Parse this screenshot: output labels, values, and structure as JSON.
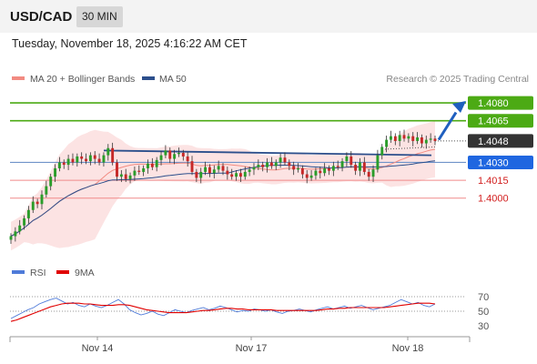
{
  "header": {
    "symbol": "USD/CAD",
    "timeframe": "30 MIN",
    "datetime": "Tuesday, November 18, 2025 4:16:22 AM CET"
  },
  "legend": {
    "ma20_label": "MA 20 + Bollinger Bands",
    "ma50_label": "MA 50",
    "ma20_color": "#f28b82",
    "ma50_color": "#2c4f8c",
    "attribution": "Research © 2025 Trading Central"
  },
  "rsi_legend": {
    "rsi_label": "RSI",
    "ma_label": "9MA",
    "rsi_color": "#4f7bd9",
    "ma_color": "#e00000"
  },
  "chart_data": [
    {
      "type": "candlestick",
      "title": "",
      "x_ticks": [
        "Nov 14",
        "Nov 17",
        "Nov 18"
      ],
      "ylim": [
        1.396,
        1.409
      ],
      "levels": [
        {
          "value": 1.408,
          "label": "1.4080",
          "kind": "resistance",
          "color": "#4caa14"
        },
        {
          "value": 1.4065,
          "label": "1.4065",
          "kind": "resistance",
          "color": "#4caa14"
        },
        {
          "value": 1.4048,
          "label": "1.4048",
          "kind": "last-price",
          "color": "#333333"
        },
        {
          "value": 1.403,
          "label": "1.4030",
          "kind": "pivot",
          "color": "#1f66e0"
        },
        {
          "value": 1.4015,
          "label": "1.4015",
          "kind": "support",
          "color": "#d21e1e"
        },
        {
          "value": 1.4,
          "label": "1.4000",
          "kind": "support",
          "color": "#d21e1e"
        }
      ],
      "closes": [
        1.3968,
        1.3972,
        1.3977,
        1.3983,
        1.399,
        1.3997,
        1.3995,
        1.4003,
        1.401,
        1.4018,
        1.4025,
        1.403,
        1.4028,
        1.4033,
        1.403,
        1.4035,
        1.4033,
        1.4031,
        1.4036,
        1.4033,
        1.403,
        1.4036,
        1.4042,
        1.403,
        1.4018,
        1.402,
        1.4016,
        1.4019,
        1.4023,
        1.4022,
        1.4025,
        1.4029,
        1.4026,
        1.4032,
        1.4036,
        1.404,
        1.4033,
        1.4037,
        1.4038,
        1.4035,
        1.4031,
        1.4022,
        1.4017,
        1.4022,
        1.4026,
        1.4021,
        1.4024,
        1.4027,
        1.4023,
        1.402,
        1.4018,
        1.4021,
        1.4018,
        1.4022,
        1.4024,
        1.4026,
        1.4028,
        1.4026,
        1.403,
        1.4027,
        1.403,
        1.4034,
        1.403,
        1.4027,
        1.4024,
        1.4025,
        1.402,
        1.4017,
        1.4019,
        1.4023,
        1.4021,
        1.4025,
        1.4023,
        1.4027,
        1.4026,
        1.4031,
        1.4035,
        1.4028,
        1.4023,
        1.403,
        1.4022,
        1.4018,
        1.4024,
        1.4036,
        1.4043,
        1.4049,
        1.4052,
        1.4048,
        1.4053,
        1.405,
        1.4052,
        1.4048,
        1.4051,
        1.4046,
        1.4049,
        1.405,
        1.4048
      ]
    },
    {
      "type": "line",
      "title": "",
      "ylim": [
        20,
        85
      ],
      "y_ticks": [
        70,
        50,
        30
      ],
      "series": [
        {
          "name": "RSI",
          "values": [
            40,
            44,
            48,
            52,
            55,
            60,
            63,
            66,
            68,
            64,
            60,
            62,
            58,
            56,
            60,
            57,
            55,
            58,
            62,
            66,
            60,
            52,
            48,
            45,
            47,
            50,
            46,
            44,
            48,
            52,
            50,
            48,
            51,
            53,
            55,
            52,
            54,
            57,
            55,
            52,
            49,
            51,
            50,
            53,
            52,
            50,
            52,
            49,
            47,
            50,
            51,
            53,
            51,
            49,
            52,
            54,
            56,
            53,
            55,
            57,
            54,
            56,
            58,
            55,
            52,
            54,
            56,
            58,
            62,
            66,
            63,
            60,
            62,
            58,
            56,
            60
          ]
        },
        {
          "name": "9MA",
          "values": [
            36,
            38,
            41,
            44,
            47,
            50,
            53,
            56,
            58,
            60,
            61,
            61,
            61,
            60,
            60,
            59,
            58,
            58,
            58,
            59,
            59,
            58,
            56,
            54,
            52,
            51,
            50,
            49,
            48,
            48,
            48,
            48,
            49,
            50,
            51,
            51,
            52,
            53,
            54,
            54,
            53,
            53,
            52,
            52,
            52,
            52,
            52,
            51,
            51,
            51,
            51,
            51,
            51,
            51,
            51,
            52,
            53,
            53,
            54,
            54,
            55,
            55,
            55,
            55,
            55,
            55,
            55,
            56,
            57,
            58,
            59,
            60,
            61,
            61,
            61,
            60
          ]
        }
      ]
    }
  ]
}
